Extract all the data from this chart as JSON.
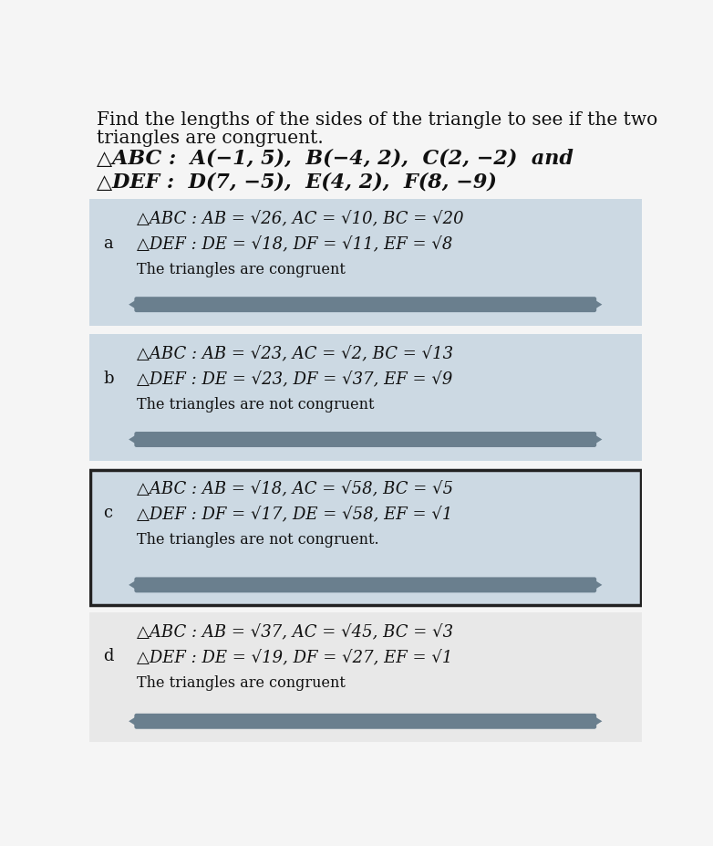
{
  "title_line1": "Find the lengths of the sides of the triangle to see if the two",
  "title_line2": "triangles are congruent.",
  "problem_line1": "△ABC :  A(−1, 5),  B(−4, 2),  C(2, −2)  and",
  "problem_line2": "△DEF :  D(7, −5),  E(4, 2),  F(8, −9)",
  "options": [
    {
      "label": "a",
      "line1": "△ABC : AB = √26, AC = √10, BC = √20",
      "line2": "△DEF : DE = √18, DF = √11, EF = √8",
      "line3": "The triangles are congruent",
      "bg_color": "#ccd9e3",
      "highlight": false
    },
    {
      "label": "b",
      "line1": "△ABC : AB = √23, AC = √2, BC = √13",
      "line2": "△DEF : DE = √23, DF = √37, EF = √9",
      "line3": "The triangles are not congruent",
      "bg_color": "#ccd9e3",
      "highlight": false
    },
    {
      "label": "c",
      "line1": "△ABC : AB = √18, AC = √58, BC = √5",
      "line2": "△DEF : DF = √17, DE = √58, EF = √1",
      "line3": "The triangles are not congruent.",
      "bg_color": "#ccd9e3",
      "highlight": true
    },
    {
      "label": "d",
      "line1": "△ABC : AB = √37, AC = √45, BC = √3",
      "line2": "△DEF : DE = √19, DF = √27, EF = √1",
      "line3": "The triangles are congruent",
      "bg_color": "#e8e8e8",
      "highlight": false
    }
  ],
  "bg_main": "#f5f5f5",
  "text_color": "#111111",
  "slider_color": "#6a7f8e",
  "box_border_color": "#222222",
  "title_fontsize": 14.5,
  "problem_fontsize": 16,
  "option_label_fontsize": 13,
  "option_text_fontsize": 13,
  "option_small_fontsize": 11.5
}
